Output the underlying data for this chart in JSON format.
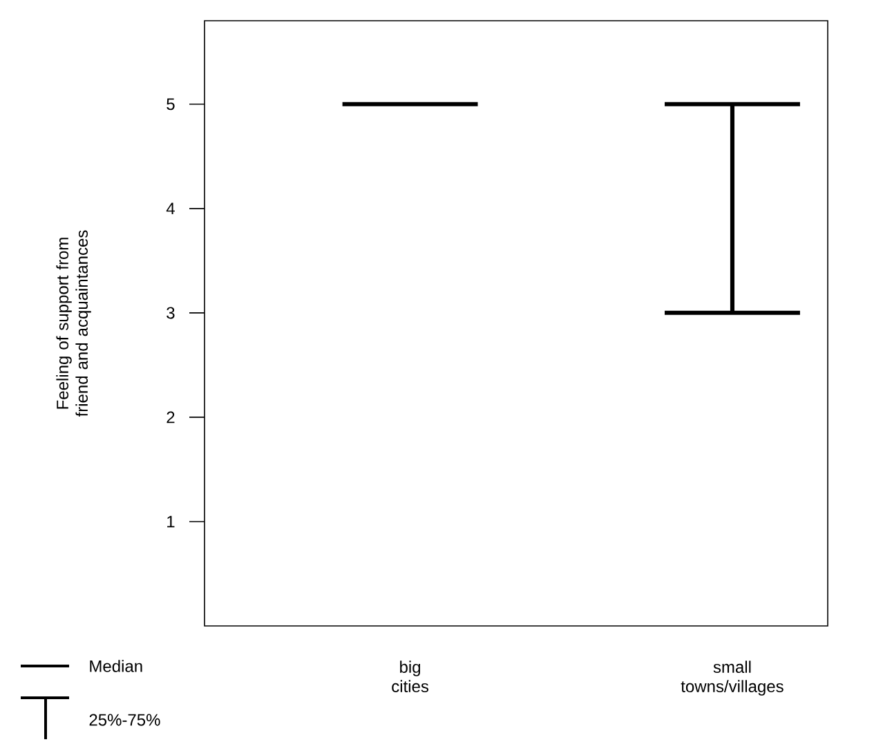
{
  "chart_data": {
    "type": "box",
    "ylabel": "Feeling of support from friend and acquaintances",
    "categories": [
      "big cities",
      "small towns/villages"
    ],
    "boxes": [
      {
        "low": 5,
        "q1": 5,
        "median": 5,
        "q3": 5,
        "high": 5
      },
      {
        "low": 3,
        "q1": 3,
        "median": 5,
        "q3": 5,
        "high": 5
      }
    ],
    "ylim": [
      0,
      5.8
    ],
    "yticks": [
      1,
      2,
      3,
      4,
      5
    ],
    "annotations": [
      "Median",
      "25%-75%"
    ]
  }
}
